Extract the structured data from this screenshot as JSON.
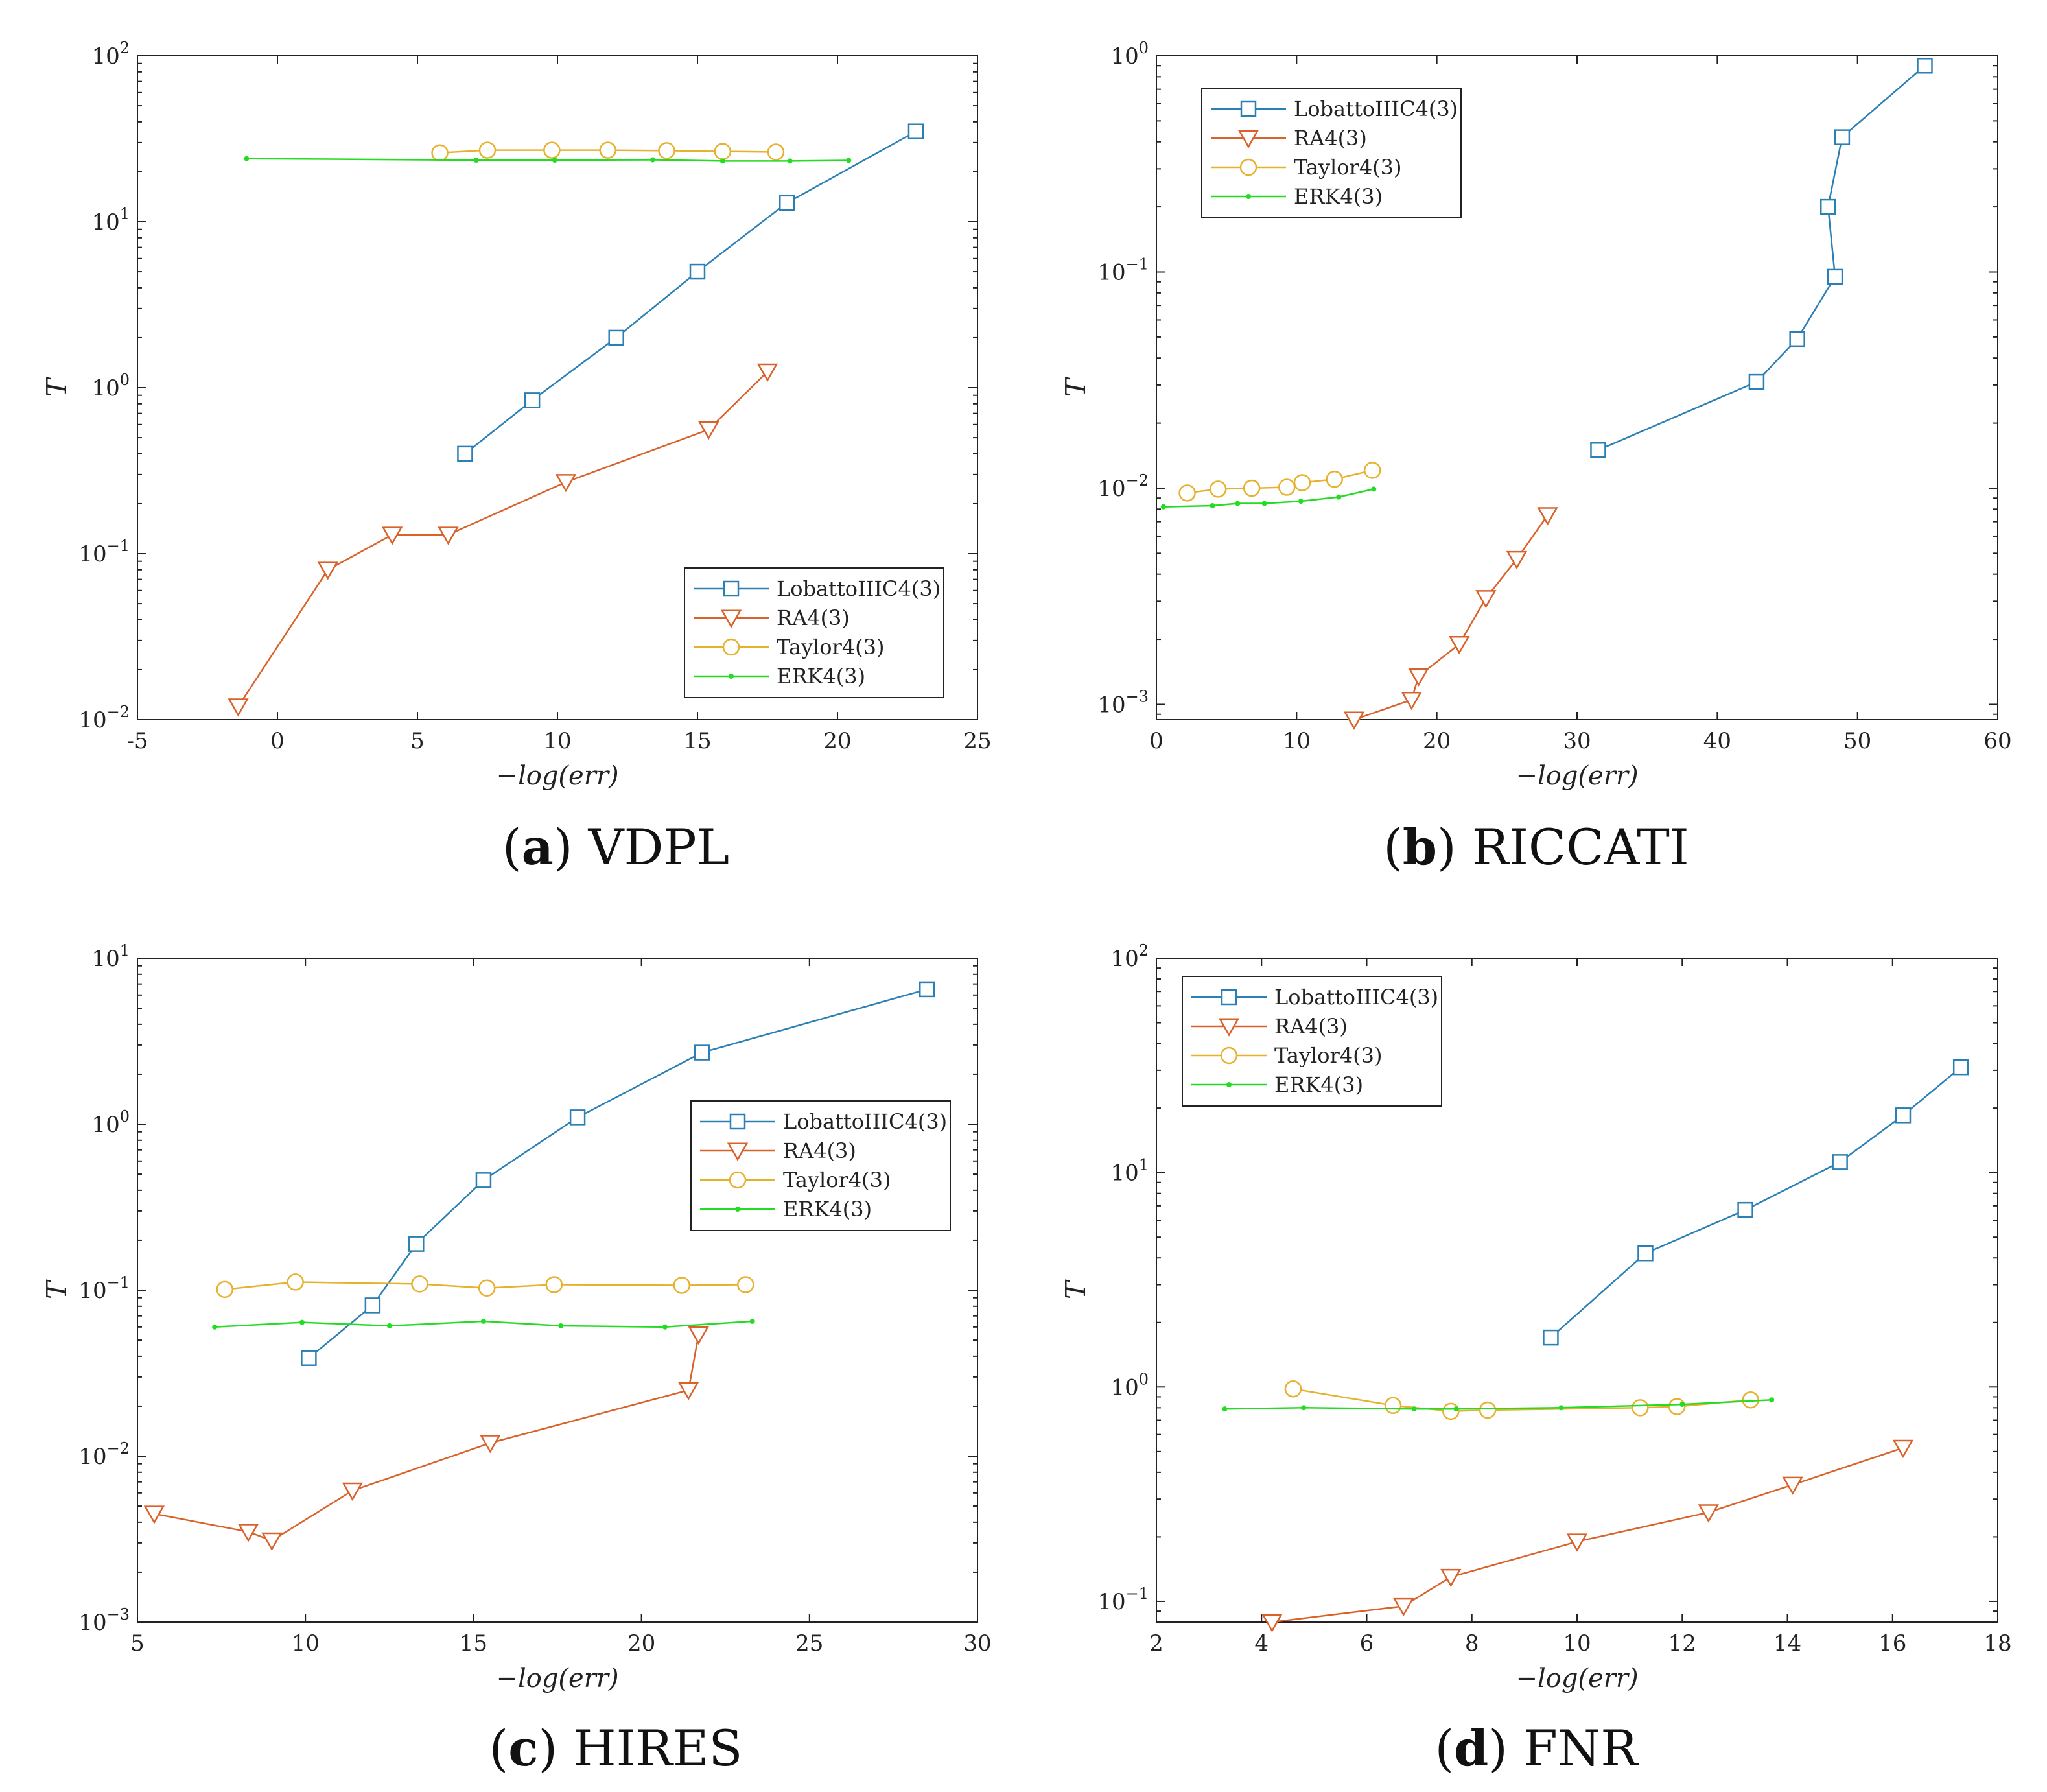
{
  "colors": {
    "LobattoIIIC4(3)": "#2a7fb5",
    "RA4(3)": "#d9622b",
    "Taylor4(3)": "#e6b12e",
    "ERK4(3)": "#22dd22"
  },
  "chart_data": [
    {
      "type": "line",
      "panel": "a",
      "title": "VDPL",
      "xlabel": "−log(err)",
      "ylabel": "T",
      "xscale": "linear",
      "yscale": "log",
      "xlim": [
        -5,
        25
      ],
      "ylim": [
        0.01,
        100
      ],
      "xticks": [
        "-5",
        "0",
        "5",
        "10",
        "15",
        "20",
        "25"
      ],
      "yticks": [
        "10^-2",
        "10^-1",
        "10^0",
        "10^1",
        "10^2"
      ],
      "grid": false,
      "legend_position": "bottom-right",
      "series": [
        {
          "name": "LobattoIIIC4(3)",
          "marker": "square",
          "x": [
            6.7,
            9.1,
            12.1,
            15.0,
            18.2,
            22.8
          ],
          "y": [
            0.4,
            0.84,
            2.0,
            5.0,
            13.0,
            35.0
          ]
        },
        {
          "name": "RA4(3)",
          "marker": "triangle-down",
          "x": [
            -1.4,
            1.8,
            4.1,
            6.1,
            10.3,
            15.4,
            17.5
          ],
          "y": [
            0.012,
            0.08,
            0.13,
            0.13,
            0.27,
            0.56,
            1.25
          ]
        },
        {
          "name": "Taylor4(3)",
          "marker": "circle",
          "x": [
            5.8,
            7.5,
            9.8,
            11.8,
            13.9,
            15.9,
            17.8
          ],
          "y": [
            26.0,
            27.0,
            27.0,
            27.0,
            26.8,
            26.5,
            26.3
          ]
        },
        {
          "name": "ERK4(3)",
          "marker": "dot",
          "x": [
            -1.1,
            7.1,
            9.9,
            13.4,
            15.9,
            18.3,
            20.4
          ],
          "y": [
            24.0,
            23.5,
            23.5,
            23.6,
            23.2,
            23.2,
            23.4
          ]
        }
      ]
    },
    {
      "type": "line",
      "panel": "b",
      "title": "RICCATI",
      "xlabel": "−log(err)",
      "ylabel": "T",
      "xscale": "linear",
      "yscale": "log",
      "xlim": [
        0,
        60
      ],
      "ylim": [
        0.00085,
        1.0
      ],
      "xticks": [
        "0",
        "10",
        "20",
        "30",
        "40",
        "50",
        "60"
      ],
      "yticks": [
        "10^-3",
        "10^-2",
        "10^-1",
        "10^0"
      ],
      "grid": false,
      "legend_position": "top-left",
      "series": [
        {
          "name": "LobattoIIIC4(3)",
          "marker": "square",
          "x": [
            31.5,
            42.8,
            45.7,
            48.4,
            47.9,
            48.9,
            54.8
          ],
          "y": [
            0.015,
            0.031,
            0.049,
            0.095,
            0.2,
            0.42,
            0.9
          ]
        },
        {
          "name": "RA4(3)",
          "marker": "triangle-down",
          "x": [
            14.1,
            18.2,
            18.7,
            21.6,
            23.5,
            25.7,
            27.9
          ],
          "y": [
            0.00085,
            0.00105,
            0.00135,
            0.0019,
            0.0031,
            0.0047,
            0.0075
          ]
        },
        {
          "name": "Taylor4(3)",
          "marker": "circle",
          "x": [
            2.2,
            4.4,
            6.8,
            9.3,
            10.4,
            12.7,
            15.4
          ],
          "y": [
            0.0095,
            0.0099,
            0.01,
            0.0101,
            0.0106,
            0.011,
            0.0121
          ]
        },
        {
          "name": "ERK4(3)",
          "marker": "dot",
          "x": [
            0.5,
            4.0,
            5.8,
            7.7,
            10.3,
            13.0,
            15.5
          ],
          "y": [
            0.0082,
            0.0083,
            0.0085,
            0.0085,
            0.0087,
            0.0091,
            0.0099
          ]
        }
      ]
    },
    {
      "type": "line",
      "panel": "c",
      "title": "HIRES",
      "xlabel": "−log(err)",
      "ylabel": "T",
      "xscale": "linear",
      "yscale": "log",
      "xlim": [
        5,
        30
      ],
      "ylim": [
        0.001,
        10
      ],
      "xticks": [
        "5",
        "10",
        "15",
        "20",
        "25",
        "30"
      ],
      "yticks": [
        "10^-3",
        "10^-2",
        "10^-1",
        "10^0",
        "10^1"
      ],
      "grid": false,
      "legend_position": "right",
      "series": [
        {
          "name": "LobattoIIIC4(3)",
          "marker": "square",
          "x": [
            10.1,
            12.0,
            13.3,
            15.3,
            18.1,
            21.8,
            28.5
          ],
          "y": [
            0.039,
            0.081,
            0.19,
            0.46,
            1.1,
            2.7,
            6.5
          ]
        },
        {
          "name": "RA4(3)",
          "marker": "triangle-down",
          "x": [
            5.5,
            8.3,
            9.0,
            11.4,
            15.5,
            21.4,
            21.7
          ],
          "y": [
            0.0045,
            0.0035,
            0.0031,
            0.0062,
            0.012,
            0.025,
            0.054
          ]
        },
        {
          "name": "Taylor4(3)",
          "marker": "circle",
          "x": [
            7.6,
            9.7,
            13.4,
            15.4,
            17.4,
            21.2,
            23.1
          ],
          "y": [
            0.101,
            0.112,
            0.109,
            0.103,
            0.108,
            0.107,
            0.108
          ]
        },
        {
          "name": "ERK4(3)",
          "marker": "dot",
          "x": [
            7.3,
            9.9,
            12.5,
            15.3,
            17.6,
            20.7,
            23.3
          ],
          "y": [
            0.06,
            0.064,
            0.061,
            0.065,
            0.061,
            0.06,
            0.065
          ]
        }
      ]
    },
    {
      "type": "line",
      "panel": "d",
      "title": "FNR",
      "xlabel": "−log(err)",
      "ylabel": "T",
      "xscale": "linear",
      "yscale": "log",
      "xlim": [
        2,
        18
      ],
      "ylim": [
        0.08,
        100
      ],
      "xticks": [
        "2",
        "4",
        "6",
        "8",
        "10",
        "12",
        "14",
        "16",
        "18"
      ],
      "yticks": [
        "10^-1",
        "10^0",
        "10^1",
        "10^2"
      ],
      "grid": false,
      "legend_position": "top-left",
      "series": [
        {
          "name": "LobattoIIIC4(3)",
          "marker": "square",
          "x": [
            9.5,
            11.3,
            13.2,
            15.0,
            16.2,
            17.3
          ],
          "y": [
            1.7,
            4.2,
            6.7,
            11.2,
            18.5,
            31.0
          ]
        },
        {
          "name": "RA4(3)",
          "marker": "triangle-down",
          "x": [
            4.2,
            6.7,
            7.6,
            10.0,
            12.5,
            14.1,
            16.2
          ],
          "y": [
            0.08,
            0.095,
            0.13,
            0.19,
            0.26,
            0.35,
            0.52
          ]
        },
        {
          "name": "Taylor4(3)",
          "marker": "circle",
          "x": [
            4.6,
            6.5,
            7.6,
            8.3,
            11.2,
            11.9,
            13.3
          ],
          "y": [
            0.98,
            0.82,
            0.77,
            0.78,
            0.8,
            0.81,
            0.87
          ]
        },
        {
          "name": "ERK4(3)",
          "marker": "dot",
          "x": [
            3.3,
            4.8,
            6.9,
            7.7,
            9.7,
            12.0,
            13.7
          ],
          "y": [
            0.79,
            0.8,
            0.79,
            0.79,
            0.8,
            0.83,
            0.87
          ]
        }
      ]
    }
  ]
}
